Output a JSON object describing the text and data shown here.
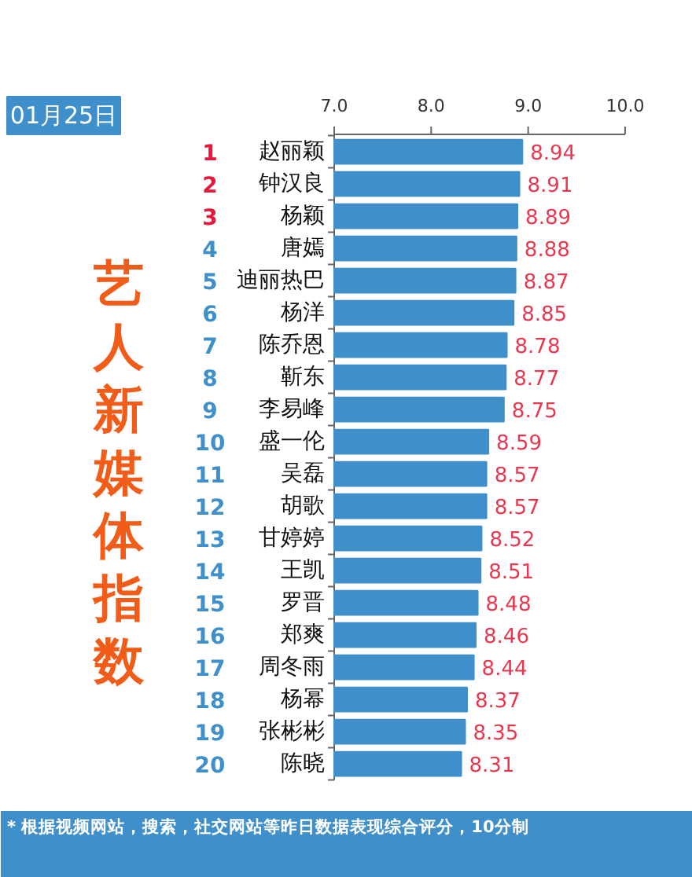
{
  "chart_data": {
    "type": "bar",
    "orientation": "horizontal",
    "title": "艺人新媒体指数",
    "subtitle": "01月25日",
    "categories": [
      "1 赵丽颖",
      "2 钟汉良",
      "3 杨颖",
      "4 唐嫣",
      "5 迪丽热巴",
      "6 杨洋",
      "7 陈乔恩",
      "8 靳东",
      "9 李易峰",
      "10 盛一伦",
      "11 吴磊",
      "12 胡歌",
      "13 甘婷婷",
      "14 王凯",
      "15 罗晋",
      "16 郑爽",
      "17 周冬雨",
      "18 杨幂",
      "19 张彬彬",
      "20 陈晓"
    ],
    "values": [
      8.94,
      8.91,
      8.89,
      8.88,
      8.87,
      8.85,
      8.78,
      8.77,
      8.75,
      8.59,
      8.57,
      8.57,
      8.52,
      8.51,
      8.48,
      8.46,
      8.44,
      8.37,
      8.35,
      8.31
    ],
    "color": "#3f8fca",
    "xlim": [
      7,
      10
    ],
    "xticks": [
      {
        "value": 7,
        "label": "7.0"
      },
      {
        "value": 8,
        "label": "8.0"
      },
      {
        "value": 9,
        "label": "9.0"
      },
      {
        "value": 10,
        "label": "10.0"
      }
    ],
    "data_labels": true,
    "annotations": [
      "* 根据视频网站，搜索，社交网站等昨日数据表现综合评分，10分制"
    ]
  }
}
